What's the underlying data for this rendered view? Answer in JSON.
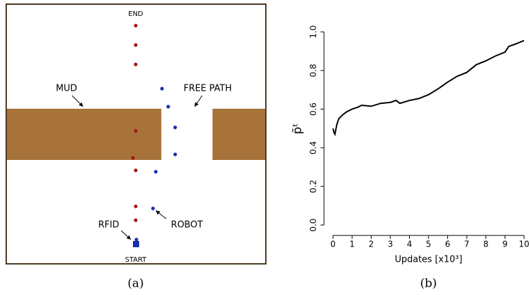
{
  "diagram": {
    "labels": {
      "end": "END",
      "mud": "MUD",
      "free_path": "FREE PATH",
      "rfid": "RFID",
      "robot": "ROBOT",
      "start": "START"
    },
    "caption": "(a)"
  },
  "chart_data": {
    "type": "line",
    "caption": "(b)",
    "x_label": "Updates [x10³]",
    "y_label": "p̄ᵗ",
    "x": [
      0,
      0.05,
      0.1,
      0.2,
      0.3,
      0.5,
      0.7,
      1,
      1.3,
      1.5,
      2,
      2.5,
      3,
      3.3,
      3.5,
      4,
      4.5,
      5,
      5.5,
      6,
      6.5,
      7,
      7.5,
      8,
      8.5,
      9,
      9.2,
      9.5,
      10
    ],
    "values": [
      0.5,
      0.48,
      0.47,
      0.52,
      0.55,
      0.57,
      0.585,
      0.6,
      0.61,
      0.62,
      0.615,
      0.63,
      0.635,
      0.645,
      0.63,
      0.645,
      0.655,
      0.675,
      0.705,
      0.74,
      0.77,
      0.79,
      0.83,
      0.85,
      0.875,
      0.895,
      0.925,
      0.935,
      0.955
    ],
    "color": "#000000",
    "xlim": [
      0,
      10
    ],
    "ylim": [
      0,
      1
    ],
    "xticks": [
      0,
      1,
      2,
      3,
      4,
      5,
      6,
      7,
      8,
      9,
      10
    ],
    "yticks": [
      {
        "value": 0,
        "label": "0.0"
      },
      0.2,
      0.4,
      0.6,
      0.8,
      {
        "value": 1,
        "label": "1.0"
      }
    ]
  }
}
